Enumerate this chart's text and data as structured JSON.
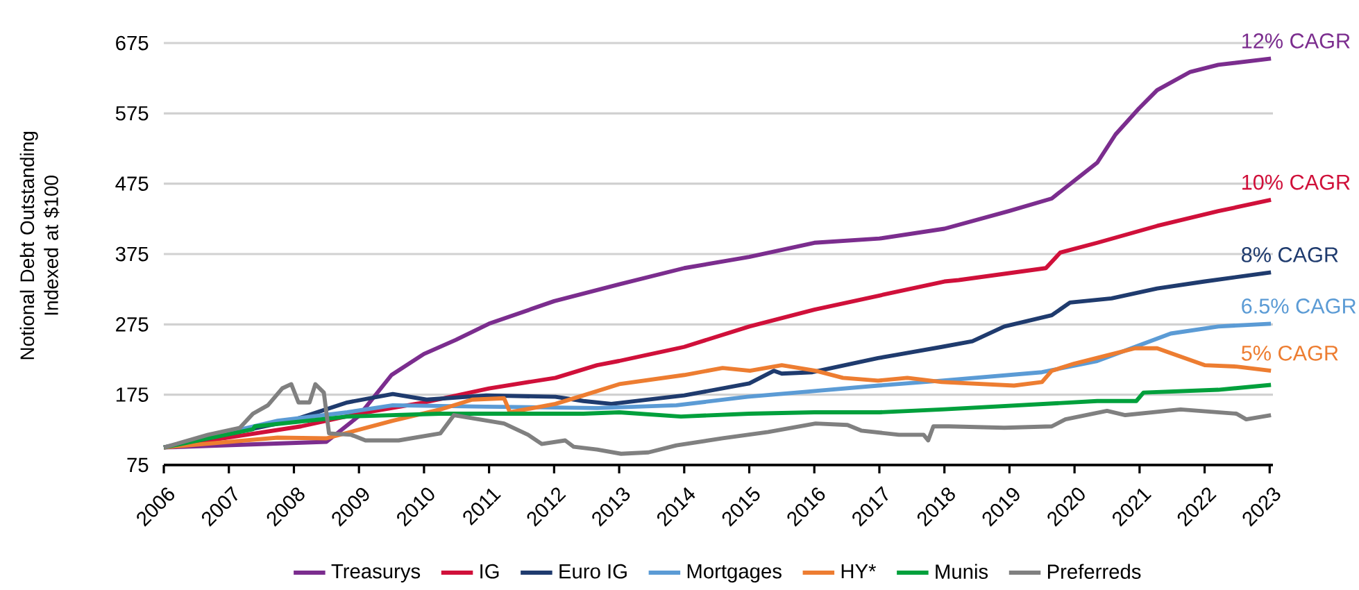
{
  "chart_data": {
    "type": "line",
    "ylabel": "Notional Debt Outstanding Indexed at $100",
    "xlim": [
      2006,
      2023.05
    ],
    "ylim": [
      75,
      675
    ],
    "xticks": [
      2006,
      2007,
      2008,
      2009,
      2010,
      2011,
      2012,
      2013,
      2014,
      2015,
      2016,
      2017,
      2018,
      2019,
      2020,
      2021,
      2022,
      2023
    ],
    "yticks": [
      75,
      175,
      275,
      375,
      475,
      575,
      675
    ],
    "grid": "y",
    "legend": "bottom",
    "marker": "none",
    "line_style": "solid",
    "series": [
      {
        "name": "Treasurys",
        "color": "#7b2d8e",
        "x": [
          2006,
          2008.5,
          2008.99,
          2009.5,
          2010,
          2010.49,
          2011,
          2012,
          2013,
          2014,
          2015,
          2016,
          2017,
          2018,
          2018.99,
          2019.65,
          2020.35,
          2020.63,
          2020.99,
          2021.27,
          2021.78,
          2022.21,
          2023.02
        ],
        "values": [
          100,
          108,
          144,
          203,
          233,
          253,
          276,
          308,
          332,
          355,
          371,
          391,
          397,
          411,
          436,
          454,
          505,
          545,
          582,
          608,
          634,
          644,
          653
        ]
      },
      {
        "name": "IG",
        "color": "#d0103a",
        "x": [
          2006,
          2008.11,
          2008.99,
          2010,
          2011,
          2012.02,
          2012.66,
          2013,
          2014,
          2015,
          2016,
          2017,
          2018,
          2018.22,
          2019.56,
          2019.78,
          2020.35,
          2021.27,
          2022.21,
          2023.02
        ],
        "values": [
          100,
          130,
          148,
          164,
          184,
          199,
          217,
          223,
          243,
          272,
          296,
          316,
          336,
          338,
          355,
          377,
          391,
          415,
          436,
          452
        ]
      },
      {
        "name": "Euro IG",
        "color": "#1f3b6e",
        "x": [
          2006,
          2007.96,
          2008.82,
          2009.52,
          2010.04,
          2010.96,
          2012.02,
          2012.45,
          2012.88,
          2014,
          2015,
          2015.38,
          2015.5,
          2015.97,
          2016.98,
          2017.96,
          2018.43,
          2018.92,
          2019.65,
          2019.93,
          2020.57,
          2021.27,
          2022,
          2023.02
        ],
        "values": [
          100,
          138,
          164,
          176,
          168,
          174,
          172,
          166,
          162,
          174,
          191,
          209,
          205,
          207,
          227,
          243,
          251,
          272,
          288,
          306,
          312,
          326,
          336,
          349
        ]
      },
      {
        "name": "Mortgages",
        "color": "#5b9bd5",
        "x": [
          2006,
          2007.75,
          2008.82,
          2009.52,
          2010.96,
          2012.66,
          2013.88,
          2014.97,
          2015.97,
          2016.98,
          2017.96,
          2019.5,
          2020.35,
          2020.93,
          2021.48,
          2022.21,
          2023.02
        ],
        "values": [
          100,
          138,
          150,
          160,
          158,
          156,
          160,
          172,
          180,
          188,
          195,
          207,
          223,
          243,
          262,
          272,
          276
        ]
      },
      {
        "name": "HY*",
        "color": "#ed7d31",
        "x": [
          2006,
          2007.75,
          2008.5,
          2009.52,
          2010.25,
          2010.74,
          2011.23,
          2011.32,
          2012.02,
          2012.45,
          2013,
          2014,
          2014.59,
          2015.01,
          2015.5,
          2016.02,
          2016.44,
          2016.98,
          2017.43,
          2017.96,
          2019.07,
          2019.5,
          2019.65,
          2019.99,
          2020.93,
          2021.27,
          2022,
          2022.49,
          2023.02
        ],
        "values": [
          100,
          114,
          113,
          138,
          154,
          168,
          170,
          150,
          162,
          174,
          190,
          203,
          213,
          209,
          217,
          209,
          199,
          195,
          199,
          193,
          188,
          193,
          209,
          219,
          241,
          241,
          217,
          215,
          209
        ]
      },
      {
        "name": "Munis",
        "color": "#00a03c",
        "x": [
          2006,
          2007.37,
          2007.4,
          2008.82,
          2010.25,
          2011.17,
          2012.45,
          2013,
          2013.95,
          2015,
          2016,
          2017,
          2017.96,
          2020.35,
          2020.95,
          2021.06,
          2022.21,
          2023.02
        ],
        "values": [
          100,
          126,
          130,
          144,
          148,
          148,
          148,
          150,
          144,
          148,
          150,
          150,
          154,
          166,
          166,
          178,
          182,
          189
        ]
      },
      {
        "name": "Preferreds",
        "color": "#808080",
        "x": [
          2006,
          2006.68,
          2007.17,
          2007.37,
          2007.6,
          2007.82,
          2007.96,
          2008.07,
          2008.24,
          2008.33,
          2008.46,
          2008.54,
          2008.88,
          2009.1,
          2009.61,
          2010.25,
          2010.46,
          2011.23,
          2011.6,
          2011.81,
          2012.17,
          2012.3,
          2012.66,
          2013.03,
          2013.45,
          2013.88,
          2014.59,
          2015.29,
          2016.02,
          2016.51,
          2016.72,
          2017.3,
          2017.68,
          2017.75,
          2017.83,
          2018.07,
          2018.92,
          2019.65,
          2019.86,
          2020.5,
          2020.78,
          2021.63,
          2022.49,
          2022.64,
          2023.02
        ],
        "values": [
          100,
          118,
          128,
          148,
          160,
          184,
          190,
          164,
          164,
          190,
          178,
          120,
          118,
          110,
          110,
          120,
          146,
          134,
          118,
          105,
          110,
          101,
          97,
          91,
          93,
          103,
          113,
          122,
          134,
          132,
          124,
          118,
          118,
          110,
          130,
          130,
          128,
          130,
          140,
          152,
          146,
          154,
          148,
          140,
          146
        ]
      }
    ],
    "annotations": [
      "12% CAGR",
      "10% CAGR",
      "8% CAGR",
      "6.5% CAGR",
      "5% CAGR"
    ]
  }
}
